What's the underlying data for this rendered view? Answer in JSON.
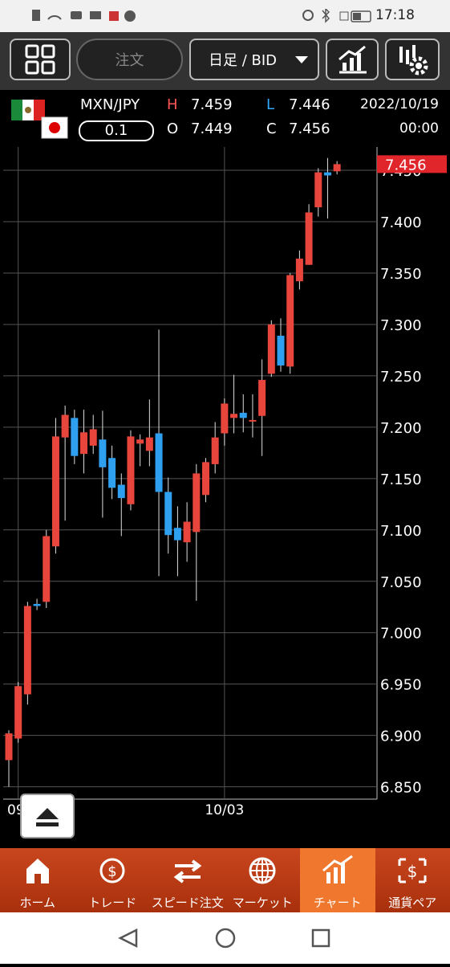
{
  "status_bar": {
    "time": "17:18"
  },
  "toolbar": {
    "order": "注文",
    "period": "日足 / BID"
  },
  "quote": {
    "pair": "MXN/JPY",
    "lot": "0.1",
    "high_label": "H",
    "high": "7.459",
    "low_label": "L",
    "low": "7.446",
    "open_label": "O",
    "open": "7.449",
    "close_label": "C",
    "close": "7.456",
    "date": "2022/10/19",
    "time": "00:00"
  },
  "chart_data": {
    "type": "candlestick",
    "categories": [
      null,
      "09/",
      null,
      null,
      null,
      null,
      null,
      null,
      null,
      null,
      null,
      null,
      null,
      null,
      null,
      null,
      null,
      null,
      null,
      null,
      null,
      null,
      null,
      "10/03",
      null,
      null,
      null,
      null,
      null,
      null,
      null,
      null,
      null,
      null,
      null,
      null
    ],
    "open": [
      6.876,
      6.897,
      6.94,
      7.028,
      7.03,
      7.084,
      7.19,
      7.209,
      7.174,
      7.182,
      7.188,
      7.17,
      7.144,
      7.125,
      7.184,
      7.177,
      7.194,
      7.137,
      7.102,
      7.088,
      7.098,
      7.134,
      7.164,
      7.194,
      7.209,
      7.214,
      7.206,
      7.211,
      7.252,
      7.289,
      7.259,
      7.342,
      7.358,
      7.414,
      7.448,
      7.449
    ],
    "high": [
      6.905,
      6.952,
      7.03,
      7.033,
      7.1,
      7.209,
      7.221,
      7.217,
      7.217,
      7.212,
      7.216,
      7.182,
      7.155,
      7.197,
      7.193,
      7.227,
      7.295,
      7.151,
      7.123,
      7.127,
      7.164,
      7.17,
      7.205,
      7.228,
      7.251,
      7.232,
      7.232,
      7.266,
      7.304,
      7.306,
      7.35,
      7.372,
      7.417,
      7.452,
      7.462,
      7.459
    ],
    "low": [
      6.85,
      6.893,
      6.93,
      7.022,
      7.024,
      7.077,
      7.109,
      7.164,
      7.155,
      7.174,
      7.112,
      7.13,
      7.094,
      7.119,
      7.162,
      7.162,
      7.055,
      7.077,
      7.055,
      7.069,
      7.031,
      7.127,
      7.155,
      7.182,
      7.194,
      7.195,
      7.19,
      7.172,
      7.249,
      7.254,
      7.252,
      7.334,
      7.358,
      7.405,
      7.403,
      7.446
    ],
    "close": [
      6.902,
      6.948,
      7.026,
      7.026,
      7.094,
      7.191,
      7.212,
      7.172,
      7.195,
      7.198,
      7.161,
      7.141,
      7.131,
      7.191,
      7.188,
      7.19,
      7.137,
      7.095,
      7.09,
      7.108,
      7.155,
      7.166,
      7.19,
      7.223,
      7.213,
      7.209,
      7.207,
      7.246,
      7.3,
      7.26,
      7.348,
      7.364,
      7.409,
      7.448,
      7.445,
      7.456
    ],
    "up_color": "#e8453c",
    "down_color": "#2f9ff0",
    "ylim": [
      6.838,
      7.4727
    ],
    "yticks": [
      {
        "value": 6.85,
        "label": "6.850"
      },
      {
        "value": 6.9,
        "label": "6.900"
      },
      {
        "value": 6.95,
        "label": "6.950"
      },
      {
        "value": 7.0,
        "label": "7.000"
      },
      {
        "value": 7.05,
        "label": "7.050"
      },
      {
        "value": 7.1,
        "label": "7.100"
      },
      {
        "value": 7.15,
        "label": "7.150"
      },
      {
        "value": 7.2,
        "label": "7.200"
      },
      {
        "value": 7.25,
        "label": "7.250"
      },
      {
        "value": 7.3,
        "label": "7.300"
      },
      {
        "value": 7.35,
        "label": "7.350"
      },
      {
        "value": 7.4,
        "label": "7.400"
      },
      {
        "value": 7.45,
        "label": "7.450"
      }
    ],
    "last_price": 7.456,
    "last_price_color": "#e0252b",
    "grid": true
  },
  "nav": [
    "ホーム",
    "トレード",
    "スピード注文",
    "マーケット",
    "チャート",
    "通貨ペア"
  ]
}
